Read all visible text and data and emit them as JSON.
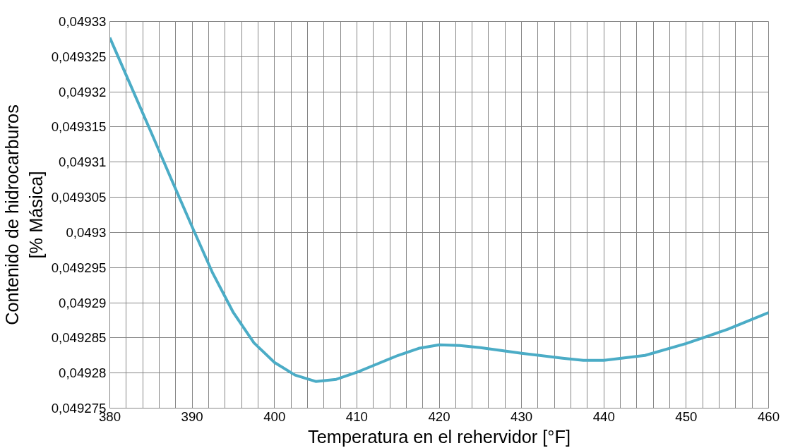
{
  "chart_data": {
    "type": "line",
    "xlabel": "Temperatura en el rehervidor [°F]",
    "ylabel": "Contenido de hidrocarburos\n[% Másica]",
    "x": [
      380,
      382.5,
      385,
      387.5,
      390,
      392.5,
      395,
      397.5,
      400,
      402.5,
      405,
      407.5,
      410,
      412.5,
      415,
      417.5,
      420,
      422.5,
      425,
      430,
      435,
      437.5,
      440,
      445,
      450,
      455,
      460
    ],
    "series": [
      {
        "color": "#4bacc6",
        "values": [
          0.0493277,
          0.049321,
          0.0493143,
          0.0493075,
          0.0493008,
          0.0492942,
          0.0492886,
          0.0492843,
          0.0492815,
          0.0492797,
          0.0492788,
          0.0492791,
          0.0492801,
          0.0492813,
          0.0492825,
          0.0492835,
          0.049284,
          0.0492839,
          0.0492836,
          0.0492828,
          0.0492821,
          0.0492818,
          0.0492818,
          0.0492825,
          0.0492842,
          0.0492862,
          0.0492886
        ]
      }
    ],
    "xlim": [
      380,
      460
    ],
    "xticks": [
      380,
      {
        "value": 382,
        "label": null
      },
      {
        "value": 384,
        "label": null
      },
      {
        "value": 386,
        "label": null
      },
      {
        "value": 388,
        "label": null
      },
      390,
      {
        "value": 392,
        "label": null
      },
      {
        "value": 394,
        "label": null
      },
      {
        "value": 396,
        "label": null
      },
      {
        "value": 398,
        "label": null
      },
      400,
      {
        "value": 402,
        "label": null
      },
      {
        "value": 404,
        "label": null
      },
      {
        "value": 406,
        "label": null
      },
      {
        "value": 408,
        "label": null
      },
      410,
      {
        "value": 412,
        "label": null
      },
      {
        "value": 414,
        "label": null
      },
      {
        "value": 416,
        "label": null
      },
      {
        "value": 418,
        "label": null
      },
      420,
      {
        "value": 422,
        "label": null
      },
      {
        "value": 424,
        "label": null
      },
      {
        "value": 426,
        "label": null
      },
      {
        "value": 428,
        "label": null
      },
      430,
      {
        "value": 432,
        "label": null
      },
      {
        "value": 434,
        "label": null
      },
      {
        "value": 436,
        "label": null
      },
      {
        "value": 438,
        "label": null
      },
      440,
      {
        "value": 442,
        "label": null
      },
      {
        "value": 444,
        "label": null
      },
      {
        "value": 446,
        "label": null
      },
      {
        "value": 448,
        "label": null
      },
      450,
      {
        "value": 452,
        "label": null
      },
      {
        "value": 454,
        "label": null
      },
      {
        "value": 456,
        "label": null
      },
      {
        "value": 458,
        "label": null
      },
      460
    ],
    "ylim": [
      0.049275,
      0.04933
    ],
    "yticks": [
      {
        "value": 0.049275,
        "label": "0,049275"
      },
      {
        "value": 0.04928,
        "label": "0,04928"
      },
      {
        "value": 0.049285,
        "label": "0,049285"
      },
      {
        "value": 0.04929,
        "label": "0,04929"
      },
      {
        "value": 0.049295,
        "label": "0,049295"
      },
      {
        "value": 0.0493,
        "label": "0,0493"
      },
      {
        "value": 0.049305,
        "label": "0,049305"
      },
      {
        "value": 0.04931,
        "label": "0,04931"
      },
      {
        "value": 0.049315,
        "label": "0,049315"
      },
      {
        "value": 0.04932,
        "label": "0,04932"
      },
      {
        "value": 0.049325,
        "label": "0,049325"
      },
      {
        "value": 0.04933,
        "label": "0,04933"
      }
    ],
    "grid": true,
    "marker": "none",
    "line_style": "solid"
  }
}
